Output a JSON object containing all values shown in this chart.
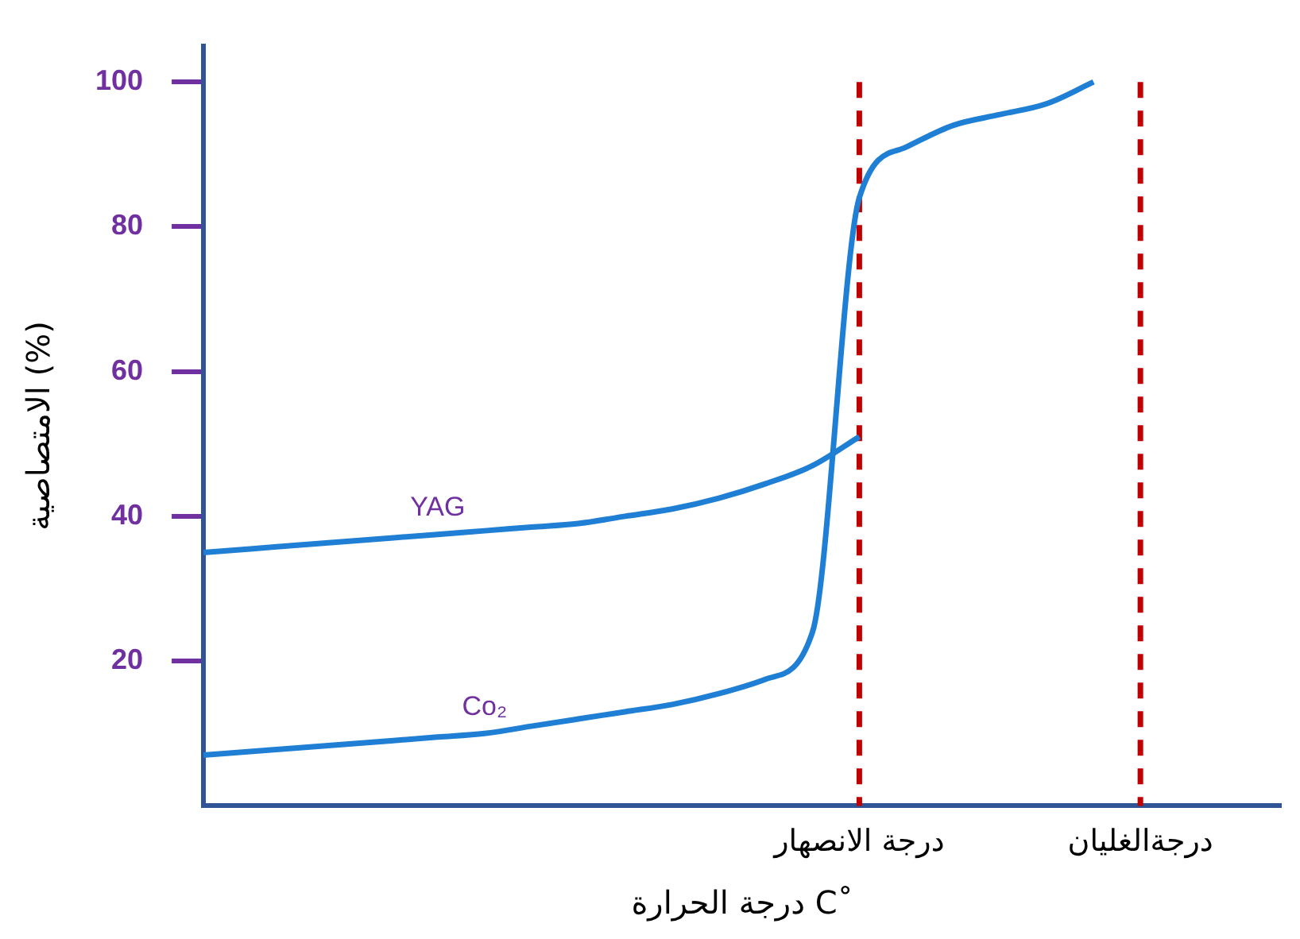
{
  "chart_data": {
    "type": "line",
    "xlabel": "درجة الحرارة C˚",
    "ylabel": "الامتصاصية (%)",
    "categories": [
      null,
      null,
      null,
      null,
      null,
      null,
      null,
      null,
      null,
      null,
      null,
      null,
      null,
      null,
      "درجة الانصهار",
      null,
      null,
      null,
      null,
      null,
      "درجةالغليان",
      null,
      null,
      null
    ],
    "series": [
      {
        "name": "YAG",
        "color": "#1f7fd4",
        "values": [
          35,
          35.5,
          36,
          36.5,
          37,
          37.5,
          38,
          38.5,
          39,
          40,
          41,
          42.5,
          44.5,
          47,
          51,
          null,
          null,
          null,
          null,
          null,
          null,
          null,
          null,
          null
        ]
      },
      {
        "name": "Co₂",
        "color": "#1f7fd4",
        "values": [
          7,
          7.5,
          8,
          8.5,
          9,
          9.5,
          10,
          11,
          12,
          13,
          14,
          15.5,
          17.5,
          24,
          84,
          91,
          94,
          95.5,
          97,
          100,
          null,
          null,
          null,
          null
        ]
      }
    ],
    "ylim": [
      0,
      105
    ],
    "yticks": [
      20,
      40,
      60,
      80,
      100
    ],
    "grid": false,
    "legend": false,
    "marker": "none",
    "line_style": "solid",
    "ref_lines": [
      {
        "axis": "x",
        "value": "درجة الانصهار",
        "color": "#c00000",
        "line_style": "dashed"
      },
      {
        "axis": "x",
        "value": "درجةالغليان",
        "color": "#c00000",
        "line_style": "dashed"
      }
    ]
  }
}
